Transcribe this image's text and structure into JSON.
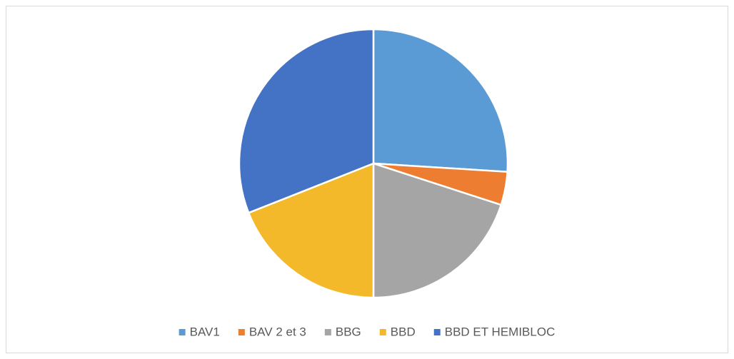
{
  "chart_data": {
    "type": "pie",
    "categories": [
      "BAV1",
      "BAV 2 et 3",
      "BBG",
      "BBD",
      "BBD ET HEMIBLOC"
    ],
    "values": [
      26,
      4,
      20,
      19,
      31
    ],
    "colors": [
      "#5b9bd5",
      "#ed7d31",
      "#a5a5a5",
      "#f4b92a",
      "#4472c4"
    ],
    "legend": "bottom"
  }
}
